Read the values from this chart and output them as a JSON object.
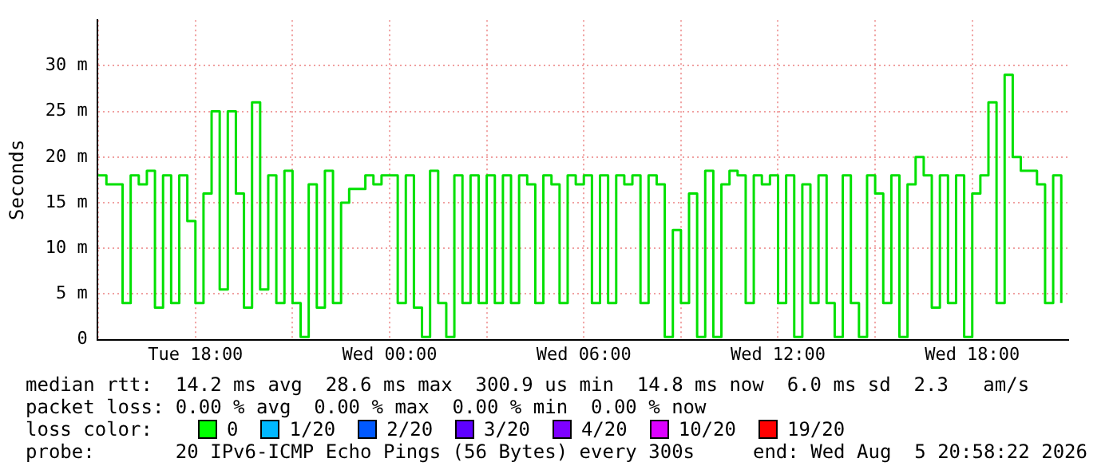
{
  "chart_data": {
    "type": "step",
    "ylabel": "Seconds",
    "x": [
      "2026-08-04T15:00",
      "2026-08-04T15:15",
      "2026-08-04T15:30",
      "2026-08-04T15:45",
      "2026-08-04T16:00",
      "2026-08-04T16:15",
      "2026-08-04T16:30",
      "2026-08-04T16:45",
      "2026-08-04T17:00",
      "2026-08-04T17:15",
      "2026-08-04T17:30",
      "2026-08-04T17:45",
      "2026-08-04T18:00",
      "2026-08-04T18:15",
      "2026-08-04T18:30",
      "2026-08-04T18:45",
      "2026-08-04T19:00",
      "2026-08-04T19:15",
      "2026-08-04T19:30",
      "2026-08-04T19:45",
      "2026-08-04T20:00",
      "2026-08-04T20:15",
      "2026-08-04T20:30",
      "2026-08-04T20:45",
      "2026-08-04T21:00",
      "2026-08-04T21:15",
      "2026-08-04T21:30",
      "2026-08-04T21:45",
      "2026-08-04T22:00",
      "2026-08-04T22:15",
      "2026-08-04T22:30",
      "2026-08-04T22:45",
      "2026-08-04T23:00",
      "2026-08-04T23:15",
      "2026-08-04T23:30",
      "2026-08-04T23:45",
      "2026-08-05T00:00",
      "2026-08-05T00:15",
      "2026-08-05T00:30",
      "2026-08-05T00:45",
      "2026-08-05T01:00",
      "2026-08-05T01:15",
      "2026-08-05T01:30",
      "2026-08-05T01:45",
      "2026-08-05T02:00",
      "2026-08-05T02:15",
      "2026-08-05T02:30",
      "2026-08-05T02:45",
      "2026-08-05T03:00",
      "2026-08-05T03:15",
      "2026-08-05T03:30",
      "2026-08-05T03:45",
      "2026-08-05T04:00",
      "2026-08-05T04:15",
      "2026-08-05T04:30",
      "2026-08-05T04:45",
      "2026-08-05T05:00",
      "2026-08-05T05:15",
      "2026-08-05T05:30",
      "2026-08-05T05:45",
      "2026-08-05T06:00",
      "2026-08-05T06:15",
      "2026-08-05T06:30",
      "2026-08-05T06:45",
      "2026-08-05T07:00",
      "2026-08-05T07:15",
      "2026-08-05T07:30",
      "2026-08-05T07:45",
      "2026-08-05T08:00",
      "2026-08-05T08:15",
      "2026-08-05T08:30",
      "2026-08-05T08:45",
      "2026-08-05T09:00",
      "2026-08-05T09:15",
      "2026-08-05T09:30",
      "2026-08-05T09:45",
      "2026-08-05T10:00",
      "2026-08-05T10:15",
      "2026-08-05T10:30",
      "2026-08-05T10:45",
      "2026-08-05T11:00",
      "2026-08-05T11:15",
      "2026-08-05T11:30",
      "2026-08-05T11:45",
      "2026-08-05T12:00",
      "2026-08-05T12:15",
      "2026-08-05T12:30",
      "2026-08-05T12:45",
      "2026-08-05T13:00",
      "2026-08-05T13:15",
      "2026-08-05T13:30",
      "2026-08-05T13:45",
      "2026-08-05T14:00",
      "2026-08-05T14:15",
      "2026-08-05T14:30",
      "2026-08-05T14:45",
      "2026-08-05T15:00",
      "2026-08-05T15:15",
      "2026-08-05T15:30",
      "2026-08-05T15:45",
      "2026-08-05T16:00",
      "2026-08-05T16:15",
      "2026-08-05T16:30",
      "2026-08-05T16:45",
      "2026-08-05T17:00",
      "2026-08-05T17:15",
      "2026-08-05T17:30",
      "2026-08-05T17:45",
      "2026-08-05T18:00",
      "2026-08-05T18:15",
      "2026-08-05T18:30",
      "2026-08-05T18:45",
      "2026-08-05T19:00",
      "2026-08-05T19:15",
      "2026-08-05T19:30",
      "2026-08-05T19:45",
      "2026-08-05T20:00",
      "2026-08-05T20:15",
      "2026-08-05T20:30",
      "2026-08-05T20:45"
    ],
    "series": [
      {
        "color": "#00e000",
        "values": [
          18,
          17,
          17,
          4,
          18,
          17,
          18.5,
          3.5,
          18,
          4,
          18,
          13,
          4,
          16,
          25,
          5.5,
          25,
          16,
          3.5,
          26,
          5.5,
          18,
          4,
          18.5,
          4,
          0.3,
          17,
          3.5,
          18.5,
          4,
          15,
          16.5,
          16.5,
          18,
          17,
          18,
          18,
          4,
          18,
          3.5,
          0.3,
          18.5,
          4,
          0.3,
          18,
          4,
          18,
          4,
          18,
          4,
          18,
          4,
          18,
          17,
          4,
          18,
          17,
          4,
          18,
          17,
          18,
          4,
          18,
          4,
          18,
          17,
          18,
          4,
          18,
          17,
          0.3,
          12,
          4,
          16,
          0.3,
          18.5,
          0.3,
          17,
          18.5,
          18,
          4,
          18,
          17,
          18,
          4,
          18,
          0.3,
          17,
          4,
          18,
          4,
          0.3,
          18,
          4,
          0.3,
          18,
          16,
          4,
          18,
          0.3,
          17,
          20,
          18,
          3.5,
          18,
          4,
          18,
          0.3,
          16,
          18,
          26,
          4,
          29,
          20,
          18.5,
          18.5,
          17,
          4,
          18,
          4
        ]
      }
    ],
    "xlim": [
      "2026-08-04T14:58",
      "2026-08-05T20:58"
    ],
    "xticks": [
      {
        "value": "2026-08-04T15:00",
        "label": null
      },
      {
        "value": "2026-08-04T18:00",
        "label": "Tue 18:00"
      },
      {
        "value": "2026-08-04T21:00",
        "label": null
      },
      {
        "value": "2026-08-05T00:00",
        "label": "Wed 00:00"
      },
      {
        "value": "2026-08-05T03:00",
        "label": null
      },
      {
        "value": "2026-08-05T06:00",
        "label": "Wed 06:00"
      },
      {
        "value": "2026-08-05T09:00",
        "label": null
      },
      {
        "value": "2026-08-05T12:00",
        "label": "Wed 12:00"
      },
      {
        "value": "2026-08-05T15:00",
        "label": null
      },
      {
        "value": "2026-08-05T18:00",
        "label": "Wed 18:00"
      }
    ],
    "ylim": [
      0,
      35
    ],
    "yticks": [
      0,
      {
        "value": 5,
        "label": "5 m"
      },
      {
        "value": 10,
        "label": "10 m"
      },
      {
        "value": 15,
        "label": "15 m"
      },
      {
        "value": 20,
        "label": "20 m"
      },
      {
        "value": 25,
        "label": "25 m"
      },
      {
        "value": 30,
        "label": "30 m"
      }
    ],
    "grid": true,
    "marker": "none",
    "line_style": "solid",
    "legend": false,
    "annotations": [
      "median rtt:  14.2 ms avg  28.6 ms max  300.9 us min  14.8 ms now  6.0 ms sd  2.3   am/s",
      "packet loss: 0.00 % avg  0.00 % max  0.00 % min  0.00 % now",
      "loss color:",
      "0",
      "1/20",
      "2/20",
      "3/20",
      "4/20",
      "10/20",
      "19/20",
      "probe:       20 IPv6-ICMP Echo Pings (56 Bytes) every 300s",
      "end: Wed Aug  5 20:58:22 2026"
    ]
  }
}
